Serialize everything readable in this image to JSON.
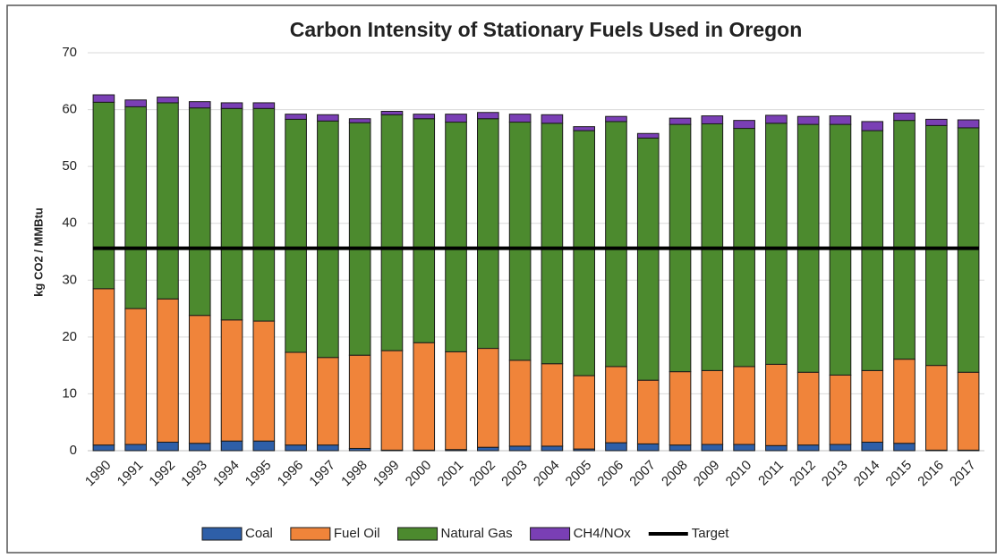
{
  "chart_data": {
    "type": "bar",
    "stacked": true,
    "title": "Carbon Intensity of Stationary Fuels Used in Oregon",
    "y_label": "kg CO2 / MMBtu",
    "categories": [
      "1990",
      "1991",
      "1992",
      "1993",
      "1994",
      "1995",
      "1996",
      "1997",
      "1998",
      "1999",
      "2000",
      "2001",
      "2002",
      "2003",
      "2004",
      "2005",
      "2006",
      "2007",
      "2008",
      "2009",
      "2010",
      "2011",
      "2012",
      "2013",
      "2014",
      "2015",
      "2016",
      "2017"
    ],
    "series": [
      {
        "name": "Coal",
        "color": "#2e5fa8",
        "values": [
          1.0,
          1.1,
          1.5,
          1.3,
          1.7,
          1.7,
          1.0,
          1.0,
          0.4,
          0.1,
          0.1,
          0.2,
          0.6,
          0.8,
          0.8,
          0.3,
          1.4,
          1.2,
          1.0,
          1.1,
          1.1,
          0.9,
          1.0,
          1.1,
          1.5,
          1.3,
          0.1,
          0.1
        ]
      },
      {
        "name": "Fuel Oil",
        "color": "#f0843a",
        "values": [
          27.5,
          23.9,
          25.2,
          22.5,
          21.3,
          21.1,
          16.3,
          15.4,
          16.4,
          17.5,
          18.9,
          17.2,
          17.4,
          15.1,
          14.5,
          12.9,
          13.4,
          11.2,
          12.9,
          13.0,
          13.7,
          14.3,
          12.8,
          12.2,
          12.6,
          14.8,
          14.9,
          13.7
        ]
      },
      {
        "name": "Natural Gas",
        "color": "#4c8a2e",
        "values": [
          32.8,
          35.5,
          34.5,
          36.5,
          37.2,
          37.4,
          41.0,
          41.6,
          40.9,
          41.5,
          39.4,
          40.4,
          40.4,
          41.9,
          42.3,
          43.1,
          43.1,
          42.6,
          43.5,
          43.4,
          41.9,
          42.4,
          43.6,
          44.1,
          42.2,
          42.0,
          42.2,
          43.0
        ]
      },
      {
        "name": "CH4/NOx",
        "color": "#7a3fb5",
        "values": [
          1.3,
          1.2,
          1.0,
          1.1,
          1.0,
          1.0,
          0.9,
          1.1,
          0.7,
          0.6,
          0.8,
          1.4,
          1.1,
          1.4,
          1.5,
          0.7,
          0.9,
          0.8,
          1.1,
          1.4,
          1.4,
          1.4,
          1.4,
          1.5,
          1.6,
          1.3,
          1.1,
          1.4
        ]
      },
      {
        "name": "Target",
        "type": "line",
        "color": "#000000",
        "values": [
          35.6,
          35.6,
          35.6,
          35.6,
          35.6,
          35.6,
          35.6,
          35.6,
          35.6,
          35.6,
          35.6,
          35.6,
          35.6,
          35.6,
          35.6,
          35.6,
          35.6,
          35.6,
          35.6,
          35.6,
          35.6,
          35.6,
          35.6,
          35.6,
          35.6,
          35.6,
          35.6,
          35.6
        ]
      }
    ],
    "ylim": [
      0,
      70
    ],
    "yticks": [
      0,
      10,
      20,
      30,
      40,
      50,
      60,
      70
    ],
    "grid": true,
    "legend": "bottom"
  }
}
